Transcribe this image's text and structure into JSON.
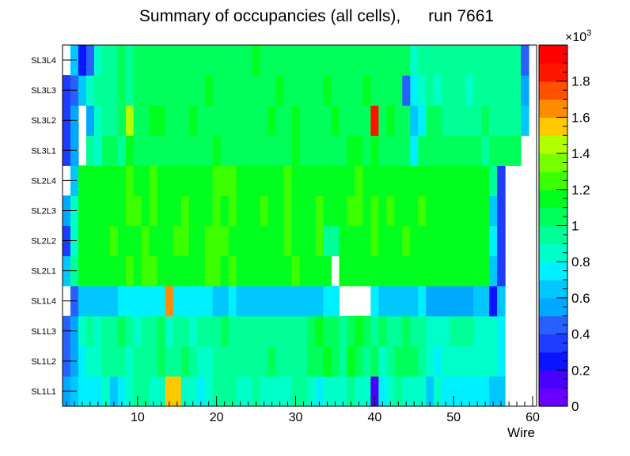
{
  "chart_data": {
    "type": "heatmap",
    "title": "Summary of occupancies (all cells),      run 7661",
    "xlabel": "Wire",
    "ylabel": "",
    "xlim": [
      0.5,
      60.5
    ],
    "x_ticks": [
      10,
      20,
      30,
      40,
      50,
      60
    ],
    "rows": [
      "SL1L1",
      "SL1L2",
      "SL1L3",
      "SL1L4",
      "SL2L1",
      "SL2L2",
      "SL2L3",
      "SL2L4",
      "SL3L1",
      "SL3L2",
      "SL3L3",
      "SL3L4"
    ],
    "colorbar": {
      "multiplier_label": "×10",
      "multiplier_exp": "3",
      "range": [
        0,
        2000
      ],
      "tick_values": [
        0,
        200,
        400,
        600,
        800,
        1000,
        1200,
        1400,
        1600,
        1800
      ],
      "tick_labels": [
        "0",
        "0.2",
        "0.4",
        "0.6",
        "0.8",
        "1",
        "1.2",
        "1.4",
        "1.6",
        "1.8"
      ]
    },
    "values_by_row": {
      "SL1L1": [
        550,
        650,
        750,
        700,
        750,
        800,
        650,
        750,
        800,
        900,
        900,
        850,
        800,
        1500,
        1500,
        850,
        800,
        750,
        850,
        900,
        950,
        900,
        800,
        850,
        900,
        800,
        850,
        800,
        850,
        900,
        900,
        850,
        750,
        800,
        850,
        800,
        900,
        850,
        800,
        100,
        750,
        800,
        900,
        850,
        850,
        800,
        650,
        850,
        750,
        700,
        700,
        700,
        700,
        700,
        600,
        600,
        0,
        0,
        0,
        0
      ],
      "SL1L2": [
        400,
        500,
        700,
        850,
        850,
        950,
        900,
        900,
        800,
        900,
        950,
        950,
        1000,
        900,
        950,
        1050,
        900,
        850,
        850,
        900,
        950,
        950,
        900,
        950,
        900,
        950,
        1000,
        900,
        900,
        900,
        950,
        1000,
        1050,
        1100,
        1000,
        950,
        1100,
        1050,
        950,
        1000,
        850,
        900,
        1000,
        1050,
        1000,
        950,
        850,
        750,
        850,
        800,
        850,
        850,
        800,
        850,
        800,
        700,
        0,
        0,
        0,
        0
      ],
      "SL1L3": [
        450,
        550,
        800,
        900,
        850,
        950,
        900,
        1000,
        950,
        850,
        950,
        950,
        1050,
        850,
        900,
        950,
        850,
        950,
        950,
        900,
        1000,
        900,
        950,
        950,
        950,
        900,
        900,
        900,
        950,
        950,
        900,
        1000,
        1100,
        1000,
        1050,
        950,
        1000,
        1100,
        1000,
        900,
        1000,
        900,
        950,
        1050,
        900,
        950,
        850,
        800,
        850,
        900,
        900,
        900,
        800,
        850,
        850,
        700,
        0,
        0,
        0,
        0
      ],
      "SL1L4": [
        0,
        450,
        650,
        650,
        650,
        650,
        650,
        700,
        700,
        750,
        750,
        750,
        700,
        1600,
        750,
        700,
        750,
        750,
        700,
        650,
        650,
        700,
        650,
        650,
        650,
        650,
        650,
        650,
        650,
        650,
        650,
        650,
        650,
        700,
        750,
        0,
        0,
        0,
        0,
        750,
        650,
        650,
        650,
        650,
        650,
        700,
        550,
        550,
        550,
        550,
        550,
        550,
        650,
        600,
        200,
        600,
        0,
        0,
        0,
        0
      ],
      "SL2L1": [
        650,
        900,
        1100,
        1100,
        1150,
        1100,
        1100,
        1150,
        1200,
        1150,
        1200,
        1200,
        1150,
        1150,
        1150,
        1150,
        1150,
        1150,
        1200,
        1200,
        1150,
        1200,
        1150,
        1100,
        1150,
        1150,
        1150,
        1150,
        1150,
        1200,
        1150,
        1100,
        1150,
        1150,
        0,
        1150,
        1100,
        1150,
        1100,
        1150,
        1150,
        1100,
        1150,
        1100,
        1100,
        1150,
        1100,
        1150,
        1150,
        1150,
        1150,
        1150,
        1150,
        1150,
        600,
        300,
        0,
        0,
        0,
        0
      ],
      "SL2L2": [
        300,
        850,
        1150,
        1100,
        1150,
        1100,
        1200,
        1100,
        1150,
        1150,
        1200,
        1150,
        1100,
        1150,
        1200,
        1200,
        1150,
        1150,
        1200,
        1200,
        1200,
        1150,
        1150,
        1100,
        1150,
        1150,
        1150,
        1150,
        1200,
        1150,
        1150,
        1150,
        1200,
        900,
        900,
        1150,
        1150,
        1150,
        1150,
        1200,
        1100,
        1150,
        1150,
        1200,
        1100,
        1100,
        1100,
        1150,
        1150,
        1150,
        1150,
        1150,
        1150,
        1150,
        750,
        350,
        0,
        0,
        0,
        0
      ],
      "SL2L3": [
        550,
        800,
        1100,
        1150,
        1150,
        1100,
        1150,
        1150,
        1200,
        1200,
        1150,
        1250,
        1150,
        1150,
        1150,
        1200,
        1150,
        1150,
        1150,
        1200,
        1150,
        1200,
        1150,
        1150,
        1150,
        1200,
        1150,
        1150,
        1200,
        1150,
        1150,
        1150,
        1200,
        1150,
        1150,
        1150,
        1200,
        1200,
        1150,
        1200,
        1150,
        1200,
        1150,
        1150,
        1150,
        1200,
        1150,
        1150,
        1150,
        1150,
        1150,
        1150,
        1150,
        1150,
        650,
        350,
        0,
        0,
        0,
        0
      ],
      "SL2L4": [
        0,
        650,
        1100,
        1150,
        1150,
        1150,
        1150,
        1150,
        1200,
        1150,
        1150,
        1200,
        1150,
        1150,
        1150,
        1150,
        1150,
        1150,
        1150,
        1200,
        1200,
        1200,
        1150,
        1150,
        1150,
        1150,
        1150,
        1150,
        1200,
        1150,
        1150,
        1150,
        1150,
        1150,
        1150,
        1150,
        1150,
        1200,
        1150,
        1150,
        1150,
        1150,
        1150,
        1150,
        1150,
        1150,
        1150,
        1150,
        1150,
        1150,
        1150,
        1150,
        1150,
        1150,
        900,
        350,
        0,
        0,
        0,
        0
      ],
      "SL3L1": [
        300,
        550,
        0,
        900,
        850,
        1000,
        1050,
        950,
        1100,
        1050,
        1000,
        1050,
        1000,
        1050,
        1000,
        1050,
        1050,
        1050,
        1000,
        1100,
        1050,
        1050,
        1050,
        1050,
        1000,
        1000,
        1050,
        1000,
        1050,
        1100,
        1050,
        1050,
        1000,
        1050,
        1000,
        1050,
        1100,
        1150,
        1050,
        1100,
        1050,
        1050,
        1000,
        1050,
        700,
        1000,
        1050,
        1050,
        1000,
        1000,
        1050,
        1000,
        1050,
        950,
        1050,
        1050,
        1050,
        1050,
        0,
        0
      ],
      "SL3L2": [
        300,
        500,
        0,
        550,
        850,
        950,
        950,
        1000,
        1450,
        1050,
        1000,
        1100,
        1100,
        1050,
        1000,
        1050,
        1100,
        1050,
        1050,
        1000,
        1050,
        1000,
        1050,
        1050,
        1050,
        1050,
        1100,
        1050,
        1050,
        1100,
        1050,
        1050,
        1050,
        1000,
        1100,
        1050,
        1050,
        1050,
        1000,
        1850,
        1050,
        1100,
        1000,
        1050,
        650,
        700,
        1000,
        1000,
        950,
        900,
        950,
        950,
        950,
        1000,
        950,
        950,
        950,
        950,
        650,
        0
      ],
      "SL3L3": [
        350,
        450,
        650,
        850,
        900,
        950,
        950,
        1000,
        950,
        1000,
        1050,
        1050,
        1000,
        1000,
        1050,
        1000,
        1050,
        1050,
        1100,
        1050,
        1050,
        1050,
        1050,
        1050,
        1050,
        1050,
        1050,
        1100,
        1050,
        1050,
        1050,
        1050,
        1050,
        1100,
        1050,
        1050,
        1050,
        1050,
        1100,
        1050,
        1050,
        1050,
        1000,
        450,
        750,
        850,
        900,
        850,
        900,
        950,
        900,
        850,
        900,
        900,
        950,
        900,
        950,
        950,
        550,
        0
      ],
      "SL3L4": [
        0,
        600,
        200,
        450,
        850,
        900,
        950,
        1000,
        950,
        1000,
        1050,
        1050,
        1000,
        1050,
        1050,
        1050,
        1000,
        1050,
        1050,
        1050,
        1050,
        1050,
        1050,
        1050,
        1100,
        1050,
        1050,
        1050,
        1050,
        1050,
        1050,
        1050,
        1050,
        1050,
        1050,
        1050,
        1050,
        1050,
        1050,
        1050,
        1000,
        1050,
        1050,
        1000,
        800,
        950,
        950,
        900,
        950,
        950,
        950,
        950,
        950,
        950,
        950,
        950,
        950,
        950,
        450,
        0
      ]
    }
  }
}
